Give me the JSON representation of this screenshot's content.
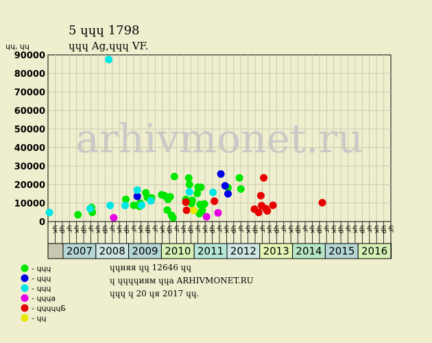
{
  "chart_data": {
    "type": "scatter",
    "title": "5 ɥɥɥ 1798",
    "subtitle": "ɥɥɥ Ag,ɥɥɥ VF.",
    "ylabel": "ɥɥ, ɥɥ",
    "ylim": [
      0,
      90000
    ],
    "yticks": [
      "0",
      "10000",
      "20000",
      "30000",
      "40000",
      "50000",
      "60000",
      "70000",
      "80000",
      "90000"
    ],
    "grid": true,
    "watermark": "arhivmonet.ru",
    "month_labels": [
      "ɥк",
      "ɥр",
      "ɥг",
      "ɥк",
      "ɥр",
      "ɥг",
      "ɥк",
      "ɥр",
      "ɥг",
      "ɥк",
      "ɥр",
      "ɥг",
      "ɥк",
      "ɥр",
      "ɥг",
      "ɥк",
      "ɥр",
      "ɥг",
      "ɥк",
      "ɥр",
      "ɥг",
      "ɥк",
      "ɥр",
      "ɥг",
      "ɥк",
      "ɥр",
      "ɥг",
      "ɥк",
      "ɥр",
      "ɥг",
      "ɥк",
      "ɥр",
      "ɥг",
      "ɥк",
      "ɥр",
      "ɥг",
      "ɥк",
      "ɥр",
      "ɥг",
      "ɥк",
      "ɥр",
      "ɥг",
      "ɥк",
      "ɥр",
      "ɥг",
      "ɥк",
      "ɥр",
      "ɥг"
    ],
    "years": [
      {
        "label": "2007",
        "color": "#b6d6d6"
      },
      {
        "label": "2008",
        "color": "#cfe6e6"
      },
      {
        "label": "2009",
        "color": "#b6d6d6"
      },
      {
        "label": "2010",
        "color": "#d6f0b6"
      },
      {
        "label": "2011",
        "color": "#b6e6d6"
      },
      {
        "label": "2012",
        "color": "#cfe6e6"
      },
      {
        "label": "2013",
        "color": "#e6f6b6"
      },
      {
        "label": "2014",
        "color": "#b6e6c6"
      },
      {
        "label": "2015",
        "color": "#b6d6d6"
      },
      {
        "label": "2016",
        "color": "#d6f0b6"
      }
    ],
    "series": [
      {
        "name": "ɥɥɥ",
        "color": "#00e600",
        "points": [
          [
            4.2,
            3700
          ],
          [
            6.1,
            7600
          ],
          [
            6.2,
            5000
          ],
          [
            10.9,
            12000
          ],
          [
            12.0,
            8800
          ],
          [
            12.8,
            8200
          ],
          [
            12.9,
            10000
          ],
          [
            13.7,
            15500
          ],
          [
            13.9,
            13000
          ],
          [
            14.5,
            12800
          ],
          [
            15.9,
            14500
          ],
          [
            16.3,
            14000
          ],
          [
            16.7,
            6200
          ],
          [
            16.8,
            12000
          ],
          [
            17.1,
            13400
          ],
          [
            17.3,
            3400
          ],
          [
            17.7,
            24300
          ],
          [
            17.5,
            2000
          ],
          [
            19.3,
            12000
          ],
          [
            19.7,
            23500
          ],
          [
            19.8,
            20000
          ],
          [
            20.1,
            9800
          ],
          [
            20.2,
            11500
          ],
          [
            20.9,
            15200
          ],
          [
            21.0,
            18500
          ],
          [
            21.2,
            4300
          ],
          [
            21.4,
            18500
          ],
          [
            21.3,
            9200
          ],
          [
            21.6,
            5900
          ],
          [
            21.9,
            9500
          ],
          [
            25.2,
            18300
          ],
          [
            26.8,
            23600
          ],
          [
            27.0,
            17600
          ]
        ]
      },
      {
        "name": "ɥɥɥ",
        "color": "#0000e6",
        "points": [
          [
            12.5,
            13600
          ],
          [
            24.2,
            25700
          ],
          [
            24.8,
            19300
          ],
          [
            25.2,
            15000
          ]
        ]
      },
      {
        "name": "ɥɥɥ",
        "color": "#00e6e6",
        "points": [
          [
            0.2,
            4900
          ],
          [
            5.9,
            7000
          ],
          [
            8.5,
            87500
          ],
          [
            8.7,
            8700
          ],
          [
            10.8,
            8700
          ],
          [
            12.5,
            17000
          ],
          [
            13.1,
            8800
          ],
          [
            14.4,
            11200
          ],
          [
            19.8,
            16000
          ],
          [
            23.1,
            15800
          ]
        ]
      },
      {
        "name": "ɥɥɥa",
        "color": "#e600e6",
        "points": [
          [
            9.2,
            2100
          ],
          [
            22.2,
            2600
          ],
          [
            23.8,
            4700
          ]
        ]
      },
      {
        "name": "ɥɥɥɥɥБ",
        "color": "#e60000",
        "points": [
          [
            19.3,
            10500
          ],
          [
            19.4,
            6100
          ],
          [
            23.3,
            11000
          ],
          [
            28.9,
            6700
          ],
          [
            29.5,
            4900
          ],
          [
            29.8,
            14000
          ],
          [
            29.9,
            8600
          ],
          [
            30.2,
            23600
          ],
          [
            30.5,
            7000
          ],
          [
            30.7,
            5800
          ],
          [
            31.5,
            8800
          ],
          [
            38.4,
            10200
          ]
        ]
      },
      {
        "name": "ɥɥ",
        "color": "#e6e600",
        "points": [
          [
            20.4,
            6000
          ]
        ]
      }
    ],
    "notes": [
      "ɥɥняя ɥɥ 12646 ɥɥ",
      "ɥ ɥɥɥɥиям ɥɥа ARHIVMONET.RU",
      "ɥɥɥ ɥ 20 ɥя 2017 ɥɥ."
    ]
  }
}
